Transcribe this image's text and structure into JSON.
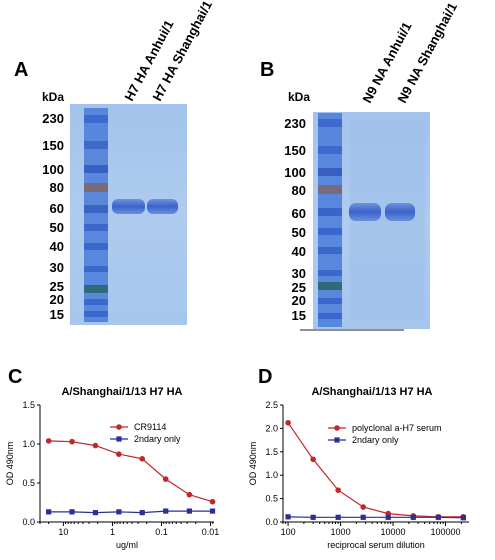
{
  "panels": {
    "A": {
      "letter": "A",
      "kda_label": "kDa",
      "mw_markers": [
        "230",
        "150",
        "100",
        "80",
        "60",
        "50",
        "40",
        "30",
        "25",
        "20",
        "15"
      ],
      "lanes": [
        "H7 HA Anhui/1",
        "H7 HA Shanghai/1"
      ]
    },
    "B": {
      "letter": "B",
      "kda_label": "kDa",
      "mw_markers": [
        "230",
        "150",
        "100",
        "80",
        "60",
        "50",
        "40",
        "30",
        "25",
        "20",
        "15"
      ],
      "lanes": [
        "N9 NA Anhui/1",
        "N9 NA Shanghai/1"
      ]
    },
    "C": {
      "letter": "C"
    },
    "D": {
      "letter": "D"
    }
  },
  "colors": {
    "gel": "#a8c8ee",
    "ladder": "#4a78d6",
    "band": "#3a6ad0",
    "series_red": "#c0262a",
    "series_blue": "#2a2f9a"
  },
  "chart_data": [
    {
      "id": "C",
      "type": "line",
      "title": "A/Shanghai/1/13 H7 HA",
      "xlabel": "ug/ml",
      "ylabel": "OD 490nm",
      "x_scale": "log",
      "x_reversed": true,
      "xlim": [
        30,
        0.0085
      ],
      "ylim": [
        0,
        1.5
      ],
      "x_ticks": [
        "10",
        "1",
        "0.1",
        "0.01"
      ],
      "y_ticks": [
        "0.0",
        "0.5",
        "1.0",
        "1.5"
      ],
      "legend_position": "top-right",
      "series": [
        {
          "name": "CR9114",
          "color": "#c0262a",
          "marker": "circle",
          "x": [
            20,
            6.67,
            2.22,
            0.74,
            0.247,
            0.082,
            0.027,
            0.0091
          ],
          "y": [
            1.04,
            1.03,
            0.98,
            0.87,
            0.81,
            0.55,
            0.35,
            0.26
          ]
        },
        {
          "name": "2ndary only",
          "color": "#2a2f9a",
          "marker": "square",
          "x": [
            20,
            6.67,
            2.22,
            0.74,
            0.247,
            0.082,
            0.027,
            0.0091
          ],
          "y": [
            0.13,
            0.13,
            0.12,
            0.13,
            0.12,
            0.14,
            0.14,
            0.14
          ]
        }
      ]
    },
    {
      "id": "D",
      "type": "line",
      "title": "A/Shanghai/1/13 H7 HA",
      "xlabel": "reciprocal serum dilution",
      "ylabel": "OD 490nm",
      "x_scale": "log",
      "x_reversed": false,
      "xlim": [
        80,
        280000
      ],
      "ylim": [
        0,
        2.5
      ],
      "x_ticks": [
        "100",
        "1000",
        "10000",
        "100000"
      ],
      "y_ticks": [
        "0.0",
        "0.5",
        "1.0",
        "1.5",
        "2.0",
        "2.5"
      ],
      "legend_position": "top-right",
      "series": [
        {
          "name": "polyclonal a-H7 serum",
          "color": "#c0262a",
          "marker": "circle",
          "x": [
            100,
            300,
            900,
            2700,
            8100,
            24300,
            72900,
            218700
          ],
          "y": [
            2.12,
            1.34,
            0.68,
            0.32,
            0.18,
            0.13,
            0.11,
            0.11
          ]
        },
        {
          "name": "2ndary only",
          "color": "#2a2f9a",
          "marker": "square",
          "x": [
            100,
            300,
            900,
            2700,
            8100,
            24300,
            72900,
            218700
          ],
          "y": [
            0.11,
            0.1,
            0.1,
            0.1,
            0.1,
            0.1,
            0.1,
            0.09
          ]
        }
      ]
    }
  ]
}
